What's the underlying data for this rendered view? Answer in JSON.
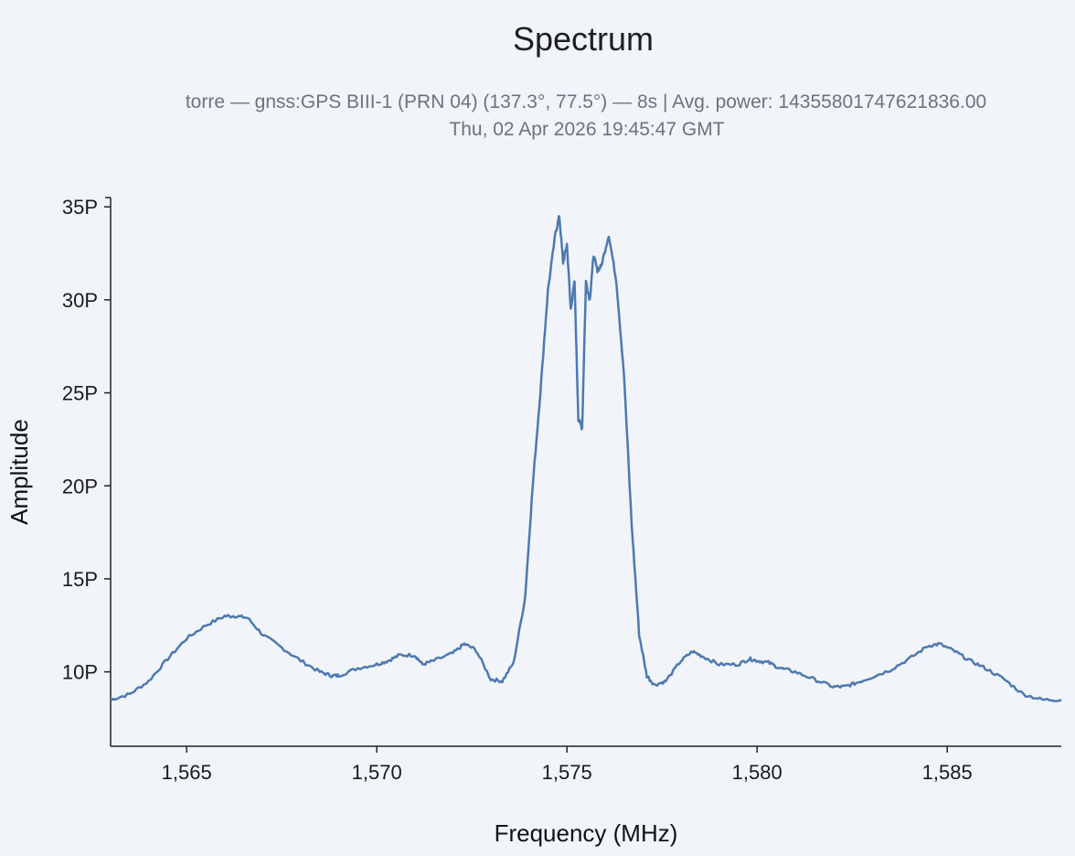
{
  "chart_data": {
    "type": "line",
    "title": "Spectrum",
    "subtitle_line1": "torre — gnss:GPS BIII-1 (PRN 04) (137.3°, 77.5°) — 8s | Avg. power: 14355801747621836.00",
    "subtitle_line2": "Thu, 02 Apr 2026 19:45:47 GMT",
    "xlabel": "Frequency (MHz)",
    "ylabel": "Amplitude",
    "xlim": [
      1563,
      1588
    ],
    "ylim": [
      6000000000000000.0,
      3.55e+16
    ],
    "x_ticks": [
      1565,
      1570,
      1575,
      1580,
      1585
    ],
    "x_tick_labels": [
      "1,565",
      "1,570",
      "1,575",
      "1,580",
      "1,585"
    ],
    "y_ticks": [
      1e+16,
      1.5e+16,
      2e+16,
      2.5e+16,
      3e+16,
      3.5e+16
    ],
    "y_tick_labels": [
      "10P",
      "15P",
      "20P",
      "25P",
      "30P",
      "35P"
    ],
    "grid": false,
    "line_color": "#4e79b0",
    "series": [
      {
        "x": [
          1563.0,
          1563.5,
          1564.0,
          1564.5,
          1565.0,
          1565.5,
          1566.0,
          1566.3,
          1566.6,
          1567.0,
          1567.5,
          1568.0,
          1568.5,
          1568.8,
          1569.0,
          1569.5,
          1570.0,
          1570.3,
          1570.6,
          1571.0,
          1571.2,
          1571.5,
          1572.0,
          1572.3,
          1572.6,
          1573.0,
          1573.3,
          1573.6,
          1573.9,
          1574.1,
          1574.3,
          1574.5,
          1574.7,
          1574.8,
          1574.9,
          1575.0,
          1575.1,
          1575.2,
          1575.3,
          1575.4,
          1575.5,
          1575.6,
          1575.7,
          1575.8,
          1575.9,
          1576.1,
          1576.3,
          1576.5,
          1576.7,
          1576.9,
          1577.1,
          1577.3,
          1577.6,
          1578.0,
          1578.3,
          1578.6,
          1579.0,
          1579.5,
          1579.8,
          1580.0,
          1580.3,
          1580.6,
          1581.0,
          1581.5,
          1582.0,
          1582.3,
          1582.6,
          1583.0,
          1583.5,
          1584.0,
          1584.5,
          1584.8,
          1585.2,
          1585.6,
          1586.0,
          1586.5,
          1587.0,
          1587.5,
          1588.0
        ],
        "y": [
          8500000000000000.0,
          8800000000000000.0,
          9500000000000000.0,
          1.07e+16,
          1.18e+16,
          1.25e+16,
          1.3e+16,
          1.3e+16,
          1.29e+16,
          1.2e+16,
          1.13e+16,
          1.06e+16,
          1e+16,
          9800000000000000.0,
          9800000000000000.0,
          1.02e+16,
          1.04e+16,
          1.06e+16,
          1.09e+16,
          1.09e+16,
          1.04e+16,
          1.06e+16,
          1.1e+16,
          1.15e+16,
          1.12e+16,
          9600000000000000.0,
          9500000000000000.0,
          1.05e+16,
          1.4e+16,
          2e+16,
          2.5e+16,
          3.05e+16,
          3.36e+16,
          3.45e+16,
          3.2e+16,
          3.3e+16,
          2.95e+16,
          3.1e+16,
          2.36e+16,
          2.31e+16,
          3.1e+16,
          3e+16,
          3.24e+16,
          3.16e+16,
          3.18e+16,
          3.35e+16,
          3.1e+16,
          2.6e+16,
          1.8e+16,
          1.2e+16,
          9800000000000000.0,
          9300000000000000.0,
          9500000000000000.0,
          1.06e+16,
          1.11e+16,
          1.08e+16,
          1.04e+16,
          1.04e+16,
          1.07e+16,
          1.06e+16,
          1.05e+16,
          1.02e+16,
          1e+16,
          9600000000000000.0,
          9200000000000000.0,
          9200000000000000.0,
          9400000000000000.0,
          9700000000000000.0,
          1.01e+16,
          1.07e+16,
          1.14e+16,
          1.15e+16,
          1.11e+16,
          1.06e+16,
          1.02e+16,
          9600000000000000.0,
          8800000000000000.0,
          8500000000000000.0,
          8500000000000000.0
        ]
      }
    ]
  }
}
